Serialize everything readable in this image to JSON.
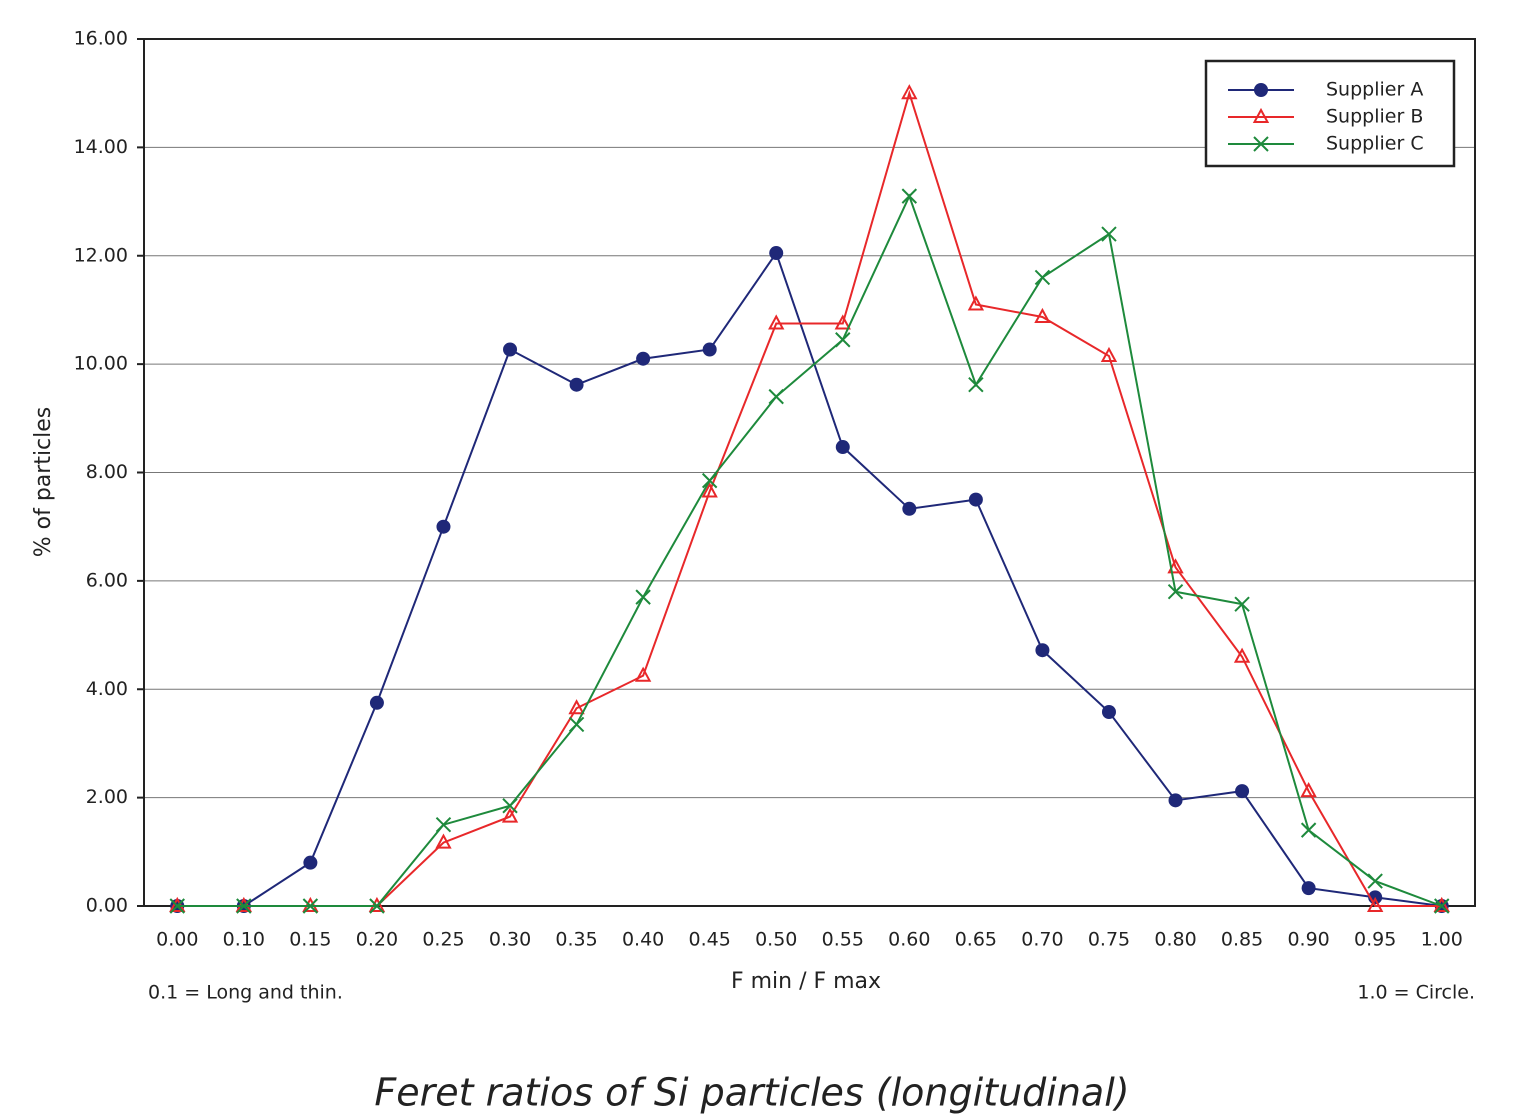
{
  "chart_data": {
    "type": "line",
    "title": "Feret ratios of Si particles (longitudinal)",
    "x_label": "F min / F max",
    "y_label": "% of particles",
    "annotations": [
      "0.1 = Long and thin.",
      "1.0 = Circle."
    ],
    "categories": [
      "0.00",
      "0.10",
      "0.15",
      "0.20",
      "0.25",
      "0.30",
      "0.35",
      "0.40",
      "0.45",
      "0.50",
      "0.55",
      "0.60",
      "0.65",
      "0.70",
      "0.75",
      "0.80",
      "0.85",
      "0.90",
      "0.95",
      "1.00"
    ],
    "series": [
      {
        "name": "Supplier A",
        "color": "#1f2878",
        "marker": "circle",
        "values": [
          0,
          0,
          0.8,
          3.75,
          7.0,
          10.27,
          9.62,
          10.1,
          10.27,
          12.05,
          8.47,
          7.33,
          7.5,
          4.72,
          3.58,
          1.95,
          2.12,
          0.33,
          0.16,
          0
        ]
      },
      {
        "name": "Supplier B",
        "color": "#e8282a",
        "marker": "triangle",
        "values": [
          0,
          0,
          0,
          0,
          1.17,
          1.65,
          3.65,
          4.25,
          7.65,
          10.75,
          10.75,
          15.0,
          11.1,
          10.87,
          10.15,
          6.25,
          4.6,
          2.12,
          0,
          0
        ]
      },
      {
        "name": "Supplier C",
        "color": "#1e8a3c",
        "marker": "x",
        "values": [
          0,
          0,
          0,
          0,
          1.5,
          1.85,
          3.35,
          5.7,
          7.85,
          9.4,
          10.45,
          13.1,
          9.62,
          11.6,
          12.4,
          5.8,
          5.57,
          1.4,
          0.46,
          0
        ]
      }
    ],
    "ylim": [
      0,
      16
    ],
    "yticks": [
      {
        "value": 0,
        "label": "0.00"
      },
      {
        "value": 2,
        "label": "2.00"
      },
      {
        "value": 4,
        "label": "4.00"
      },
      {
        "value": 6,
        "label": "6.00"
      },
      {
        "value": 8,
        "label": "8.00"
      },
      {
        "value": 10,
        "label": "10.00"
      },
      {
        "value": 12,
        "label": "12.00"
      },
      {
        "value": 14,
        "label": "14.00"
      },
      {
        "value": 16,
        "label": "16.00"
      }
    ],
    "grid": true,
    "legend": "upper right"
  }
}
